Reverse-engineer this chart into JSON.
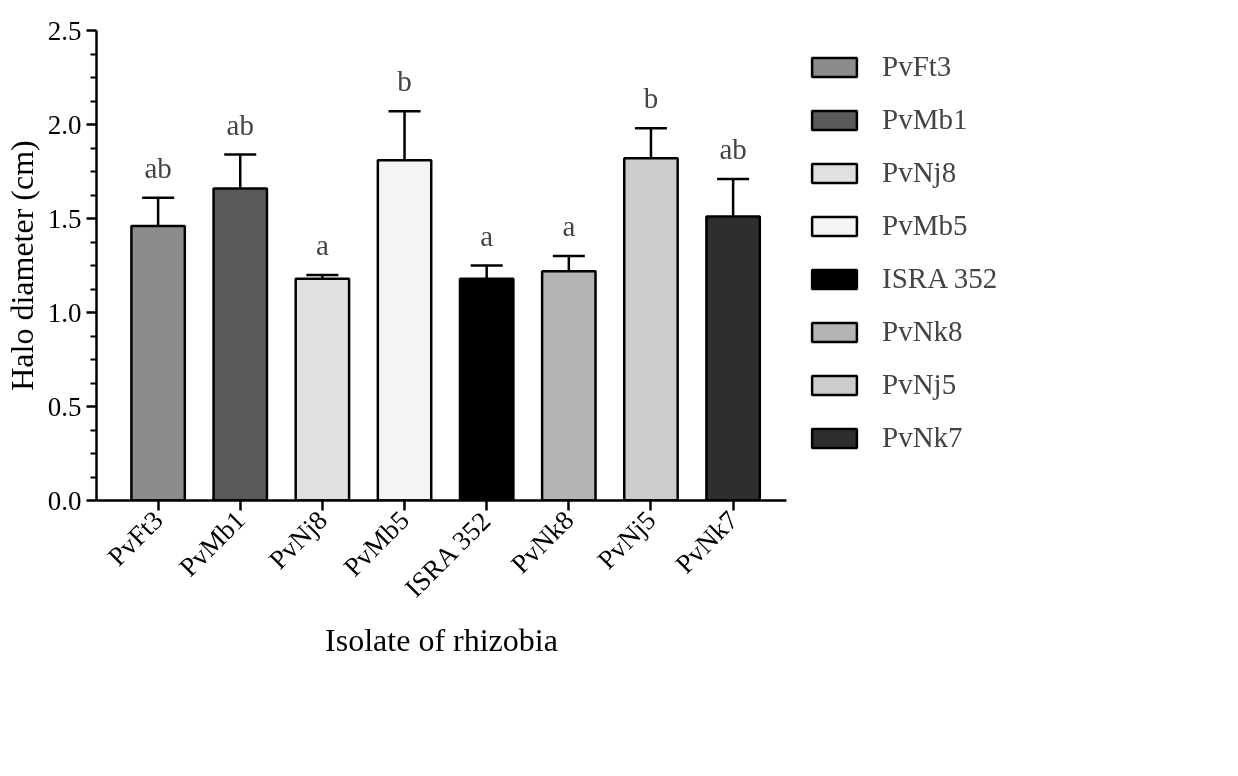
{
  "chart_data": {
    "type": "bar",
    "stacked": true,
    "categories": [
      "PvFt3",
      "PvMb1",
      "PvNj8",
      "PvMb5",
      "ISRA 352",
      "PvNk8",
      "PvNj5",
      "PvNk7"
    ],
    "series": [
      {
        "name": "PvFt3",
        "color": "#8c8c8c",
        "values": [
          1.46,
          null,
          null,
          null,
          null,
          null,
          null,
          null
        ],
        "errors": [
          0.15,
          null,
          null,
          null,
          null,
          null,
          null,
          null
        ]
      },
      {
        "name": "PvMb1",
        "color": "#5a5a5a",
        "values": [
          null,
          1.66,
          null,
          null,
          null,
          null,
          null,
          null
        ],
        "errors": [
          null,
          0.18,
          null,
          null,
          null,
          null,
          null,
          null
        ]
      },
      {
        "name": "PvNj8",
        "color": "#e0e0e0",
        "values": [
          null,
          null,
          1.18,
          null,
          null,
          null,
          null,
          null
        ],
        "errors": [
          null,
          null,
          0.02,
          null,
          null,
          null,
          null,
          null
        ]
      },
      {
        "name": "PvMb5",
        "color": "#f4f4f4",
        "values": [
          null,
          null,
          null,
          1.81,
          null,
          null,
          null,
          null
        ],
        "errors": [
          null,
          null,
          null,
          0.26,
          null,
          null,
          null,
          null
        ]
      },
      {
        "name": "ISRA 352",
        "color": "#000000",
        "values": [
          null,
          null,
          null,
          null,
          1.18,
          null,
          null,
          null
        ],
        "errors": [
          null,
          null,
          null,
          null,
          0.07,
          null,
          null,
          null
        ]
      },
      {
        "name": "PvNk8",
        "color": "#b4b4b4",
        "values": [
          null,
          null,
          null,
          null,
          null,
          1.22,
          null,
          null
        ],
        "errors": [
          null,
          null,
          null,
          null,
          null,
          0.08,
          null,
          null
        ]
      },
      {
        "name": "PvNj5",
        "color": "#cccccc",
        "values": [
          null,
          null,
          null,
          null,
          null,
          null,
          1.82,
          null
        ],
        "errors": [
          null,
          null,
          null,
          null,
          null,
          null,
          0.16,
          null
        ]
      },
      {
        "name": "PvNk7",
        "color": "#2e2e2e",
        "values": [
          null,
          null,
          null,
          null,
          null,
          null,
          null,
          1.51
        ],
        "errors": [
          null,
          null,
          null,
          null,
          null,
          null,
          null,
          0.2
        ]
      }
    ],
    "xlabel": "Isolate of rhizobia",
    "ylabel": "Halo diameter (cm)",
    "ylim": [
      0,
      2.5
    ],
    "yticks": [
      {
        "value": 0,
        "label": "0.0"
      },
      0.5,
      {
        "value": 1,
        "label": "1.0"
      },
      1.5,
      {
        "value": 2,
        "label": "2.0"
      },
      2.5
    ],
    "legend": "right",
    "annotations": [
      "ab",
      "ab",
      "a",
      "b",
      "a",
      "a",
      "b",
      "ab"
    ]
  }
}
